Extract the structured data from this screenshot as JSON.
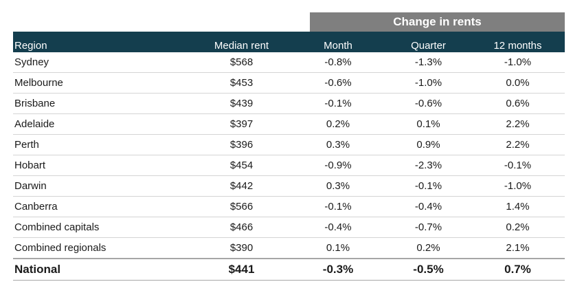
{
  "table": {
    "group_header": "Change in rents",
    "columns": [
      "Region",
      "Median rent",
      "Month",
      "Quarter",
      "12 months"
    ],
    "rows": [
      [
        "Sydney",
        "$568",
        "-0.8%",
        "-1.3%",
        "-1.0%"
      ],
      [
        "Melbourne",
        "$453",
        "-0.6%",
        "-1.0%",
        "0.0%"
      ],
      [
        "Brisbane",
        "$439",
        "-0.1%",
        "-0.6%",
        "0.6%"
      ],
      [
        "Adelaide",
        "$397",
        "0.2%",
        "0.1%",
        "2.2%"
      ],
      [
        "Perth",
        "$396",
        "0.3%",
        "0.9%",
        "2.2%"
      ],
      [
        "Hobart",
        "$454",
        "-0.9%",
        "-2.3%",
        "-0.1%"
      ],
      [
        "Darwin",
        "$442",
        "0.3%",
        "-0.1%",
        "-1.0%"
      ],
      [
        "Canberra",
        "$566",
        "-0.1%",
        "-0.4%",
        "1.4%"
      ],
      [
        "Combined capitals",
        "$466",
        "-0.4%",
        "-0.7%",
        "0.2%"
      ],
      [
        "Combined regionals",
        "$390",
        "0.1%",
        "0.2%",
        "2.1%"
      ]
    ],
    "total_row": [
      "National",
      "$441",
      "-0.3%",
      "-0.5%",
      "0.7%"
    ]
  },
  "colors": {
    "header_bg": "#143e4e",
    "group_header_bg": "#7f7f7f"
  }
}
